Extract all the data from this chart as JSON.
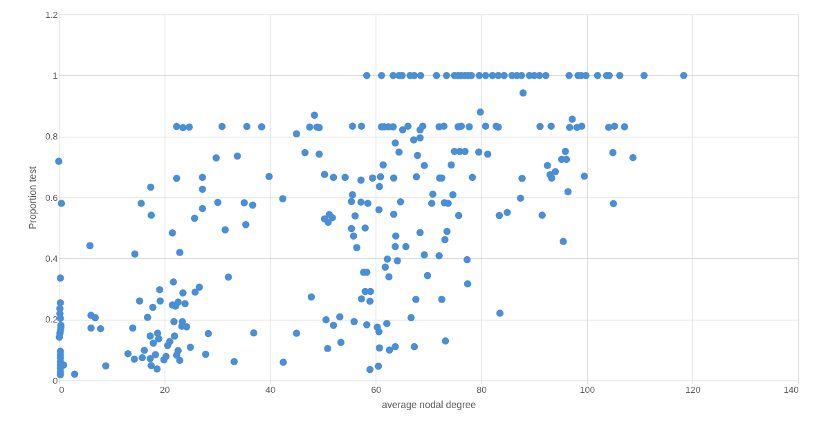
{
  "chart_data": {
    "type": "scatter",
    "xlabel": "average nodal degree",
    "ylabel": "Proportion test",
    "xlim": [
      0,
      140
    ],
    "xticks": [
      0,
      20,
      40,
      60,
      80,
      100,
      120,
      140
    ],
    "ylim": [
      0,
      1.2
    ],
    "yticks": [
      0,
      0.2,
      0.4,
      0.6,
      0.8,
      1,
      1.2
    ],
    "grid": true,
    "marker": "circle",
    "legend": false,
    "series": [
      {
        "color": "#4a8fd6",
        "x": [
          58.3,
          61.1,
          63.3,
          64.4,
          65.0,
          66.5,
          67.3,
          68.5,
          71.5,
          73.4,
          74.9,
          75.6,
          76.2,
          76.9,
          77.5,
          78.1,
          79.6,
          80.8,
          82.1,
          83.2,
          84.3,
          85.8,
          86.7,
          87.6,
          89.1,
          90.0,
          91.0,
          92.2,
          96.6,
          98.3,
          98.9,
          99.8,
          102.0,
          103.7,
          104.2,
          106.2,
          110.8,
          118.3,
          79.8,
          48.4,
          47.5,
          48.9,
          49.3,
          45.0,
          55.6,
          57.3,
          61.1,
          61.6,
          62.4,
          63.3,
          65.1,
          66.1,
          68.4,
          68.9,
          72.0,
          72.9,
          75.6,
          76.2,
          77.7,
          63.7,
          67.2,
          68.4,
          46.6,
          49.3,
          64.4,
          67.9,
          74.9,
          75.9,
          76.9,
          79.5,
          61.4,
          69.2,
          74.3,
          50.3,
          52.0,
          54.2,
          57.2,
          59.4,
          60.9,
          63.4,
          67.7,
          72.1,
          72.5,
          78.3,
          60.7,
          42.4,
          55.6,
          70.8,
          74.6,
          55.4,
          57.2,
          58.5,
          64.7,
          70.6,
          73.0,
          73.7,
          60.6,
          63.4,
          75.7,
          50.3,
          51.2,
          51.8,
          51.0,
          56.1,
          55.4,
          58.0,
          55.8,
          56.4,
          63.8,
          63.7,
          65.7,
          68.4,
          73.5,
          73.1,
          69.2,
          72.0,
          77.3,
          62.2,
          64.1,
          61.8,
          57.7,
          58.3,
          62.5,
          69.8,
          77.4,
          47.8,
          58.0,
          59.0,
          57.3,
          58.9,
          67.6,
          72.5,
          66.7,
          50.6,
          53.2,
          52.0,
          55.9,
          58.3,
          60.3,
          60.6,
          62.1,
          45.0,
          53.4,
          50.9,
          60.7,
          62.6,
          63.7,
          67.3,
          73.2,
          42.5,
          60.5,
          58.9,
          87.9,
          97.2,
          80.8,
          82.8,
          83.2,
          91.1,
          93.2,
          96.7,
          98.1,
          99.0,
          104.1,
          105.2,
          107.1,
          81.2,
          95.9,
          95.2,
          96.1,
          104.9,
          108.7,
          92.5,
          94.0,
          93.0,
          93.3,
          99.5,
          87.7,
          87.4,
          96.4,
          105.0,
          83.4,
          84.9,
          91.5,
          95.5,
          83.5,
          0,
          0.5,
          0.3,
          0.3,
          0.2,
          0.2,
          0.3,
          0.4,
          0.4,
          0.3,
          0.2,
          0.1,
          0.3,
          0.3,
          0.3,
          0.3,
          0.9,
          0.3,
          0.3,
          0.3,
          0.3,
          3.0,
          5.9,
          6.1,
          6.9,
          6.1,
          7.9,
          8.9,
          13.1,
          14.0,
          14.4,
          14.3,
          15.3,
          15.6,
          15.8,
          16.8,
          16.2,
          17.3,
          17.4,
          17.5,
          17.5,
          17.8,
          17.9,
          18.3,
          18.7,
          18.9,
          18.6,
          19.1,
          19.2,
          17.3,
          19.9,
          20.3,
          20.6,
          21.0,
          21.5,
          21.7,
          21.5,
          22.1,
          21.8,
          21.9,
          22.3,
          22.3,
          22.6,
          22.9,
          22.3,
          22.6,
          22.9,
          23.4,
          23.5,
          23.5,
          23.3,
          23.9,
          24.2,
          24.7,
          24.9,
          25.7,
          25.8,
          26.6,
          27.2,
          27.2,
          27.2,
          27.8,
          28.3,
          29.8,
          30.1,
          30.9,
          31.5,
          32.1,
          33.2,
          33.8,
          35.1,
          35.4,
          35.6,
          36.7,
          36.9,
          38.4,
          39.8
        ],
        "values": [
          1,
          1,
          1,
          1,
          1,
          1,
          1,
          1,
          1,
          1,
          1,
          1,
          1,
          1,
          1,
          1,
          1,
          1,
          1,
          1,
          1,
          1,
          1,
          1,
          1,
          1,
          1,
          1,
          1,
          1,
          1,
          1,
          1,
          1,
          1,
          1,
          1,
          1,
          0.88,
          0.87,
          0.831,
          0.831,
          0.829,
          0.809,
          0.834,
          0.834,
          0.832,
          0.832,
          0.832,
          0.832,
          0.822,
          0.834,
          0.822,
          0.834,
          0.832,
          0.834,
          0.832,
          0.834,
          0.832,
          0.779,
          0.789,
          0.796,
          0.747,
          0.742,
          0.749,
          0.738,
          0.751,
          0.751,
          0.751,
          0.749,
          0.707,
          0.705,
          0.707,
          0.676,
          0.666,
          0.666,
          0.657,
          0.664,
          0.668,
          0.664,
          0.668,
          0.664,
          0.664,
          0.666,
          0.636,
          0.596,
          0.609,
          0.611,
          0.609,
          0.587,
          0.585,
          0.581,
          0.586,
          0.581,
          0.583,
          0.581,
          0.56,
          0.545,
          0.541,
          0.53,
          0.544,
          0.534,
          0.519,
          0.54,
          0.498,
          0.5,
          0.474,
          0.436,
          0.474,
          0.439,
          0.439,
          0.485,
          0.489,
          0.462,
          0.412,
          0.409,
          0.396,
          0.398,
          0.393,
          0.372,
          0.355,
          0.355,
          0.34,
          0.344,
          0.317,
          0.274,
          0.292,
          0.292,
          0.268,
          0.26,
          0.266,
          0.266,
          0.206,
          0.199,
          0.209,
          0.181,
          0.193,
          0.183,
          0.175,
          0.16,
          0.187,
          0.155,
          0.125,
          0.105,
          0.107,
          0.1,
          0.111,
          0.111,
          0.13,
          0.06,
          0.047,
          0.036,
          0.943,
          0.857,
          0.834,
          0.834,
          0.831,
          0.833,
          0.834,
          0.83,
          0.83,
          0.834,
          0.83,
          0.834,
          0.832,
          0.742,
          0.751,
          0.725,
          0.725,
          0.747,
          0.731,
          0.705,
          0.685,
          0.675,
          0.664,
          0.67,
          0.663,
          0.598,
          0.619,
          0.58,
          0.541,
          0.551,
          0.542,
          0.456,
          0.221,
          0.719,
          0.581,
          0.336,
          0.255,
          0.236,
          0.219,
          0.204,
          0.181,
          0.174,
          0.164,
          0.155,
          0.142,
          0.096,
          0.084,
          0.074,
          0.062,
          0.051,
          0.051,
          0.04,
          0.028,
          0.019,
          0.021,
          0.442,
          0.214,
          0.206,
          0.172,
          0.17,
          0.048,
          0.088,
          0.172,
          0.415,
          0.07,
          0.261,
          0.581,
          0.075,
          0.207,
          0.099,
          0.146,
          0.634,
          0.542,
          0.049,
          0.24,
          0.123,
          0.085,
          0.155,
          0.137,
          0.038,
          0.298,
          0.261,
          0.072,
          0.068,
          0.079,
          0.115,
          0.128,
          0.484,
          0.323,
          0.248,
          0.244,
          0.193,
          0.146,
          0.663,
          0.833,
          0.257,
          0.42,
          0.083,
          0.098,
          0.066,
          0.193,
          0.829,
          0.287,
          0.178,
          0.252,
          0.176,
          0.831,
          0.109,
          0.532,
          0.29,
          0.306,
          0.666,
          0.627,
          0.564,
          0.086,
          0.154,
          0.73,
          0.584,
          0.833,
          0.494,
          0.339,
          0.062,
          0.736,
          0.583,
          0.511,
          0.833,
          0.575,
          0.156,
          0.832,
          0.669
        ]
      }
    ]
  }
}
